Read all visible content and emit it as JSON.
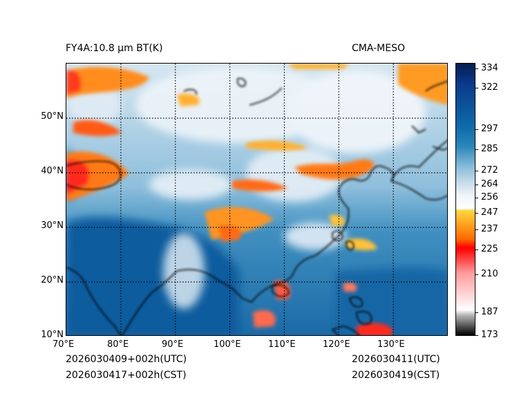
{
  "header": {
    "product_title": "FY4A:10.8 µm BT(K)",
    "model_label": "CMA-MESO"
  },
  "map": {
    "lat_labels": [
      "50°N",
      "40°N",
      "30°N",
      "20°N",
      "10°N"
    ],
    "lon_labels": [
      "70°E",
      "80°E",
      "90°E",
      "100°E",
      "110°E",
      "120°E",
      "130°E"
    ],
    "extent": {
      "lon_min": 70,
      "lon_max": 140,
      "lat_min": 10,
      "lat_max": 60
    },
    "gridline_style": "dotted"
  },
  "colorbar": {
    "tick_labels": [
      "334",
      "322",
      "297",
      "285",
      "272",
      "264",
      "256",
      "247",
      "237",
      "225",
      "210",
      "187",
      "173"
    ],
    "stops": [
      {
        "value": 173,
        "color": "#000000"
      },
      {
        "value": 185,
        "color": "#b8b8b8"
      },
      {
        "value": 188,
        "color": "#ffffff"
      },
      {
        "value": 210,
        "color": "#ff9a9a"
      },
      {
        "value": 222,
        "color": "#ff1a1a"
      },
      {
        "value": 225,
        "color": "#ff0000"
      },
      {
        "value": 230,
        "color": "#ff6a00"
      },
      {
        "value": 247,
        "color": "#ffd740"
      },
      {
        "value": 248,
        "color": "#ffffff"
      },
      {
        "value": 256,
        "color": "#eef4f9"
      },
      {
        "value": 264,
        "color": "#c4dae9"
      },
      {
        "value": 272,
        "color": "#8ebfdb"
      },
      {
        "value": 285,
        "color": "#2b86b9"
      },
      {
        "value": 297,
        "color": "#0e6aa8"
      },
      {
        "value": 322,
        "color": "#0a3a8a"
      },
      {
        "value": 334,
        "color": "#061c4e"
      }
    ]
  },
  "footer": {
    "init_utc": "2026030409+002h(UTC)",
    "init_cst": "2026030417+002h(CST)",
    "valid_utc": "2026030411(UTC)",
    "valid_cst": "2026030419(CST)"
  }
}
